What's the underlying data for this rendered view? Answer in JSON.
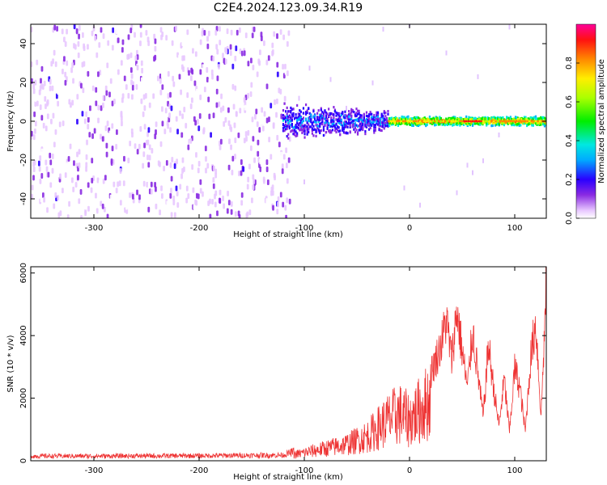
{
  "title": "C2E4.2024.123.09.34.R19",
  "chart_data": [
    {
      "type": "heatmap",
      "xlabel": "Height of straight line (km)",
      "ylabel": "Frequency (Hz)",
      "xlim": [
        -360,
        130
      ],
      "ylim": [
        -50,
        50
      ],
      "xticks": [
        -300,
        -200,
        -100,
        0,
        100
      ],
      "yticks": [
        -40,
        -20,
        0,
        20,
        40
      ],
      "colorbar": {
        "label": "Normalized spectral amplitude",
        "range": [
          0,
          1
        ],
        "ticks": [
          0.0,
          0.2,
          0.4,
          0.6,
          0.8
        ]
      },
      "regions": [
        {
          "x_range": [
            -360,
            -120
          ],
          "y_range": [
            -50,
            50
          ],
          "amplitude": "low (0.0-0.25), broadband noise"
        },
        {
          "x_range": [
            -120,
            -20
          ],
          "y_range": [
            -12,
            12
          ],
          "amplitude": "0.2-0.5, signal around 0 Hz"
        },
        {
          "x_range": [
            -20,
            130
          ],
          "y_range": [
            -3,
            3
          ],
          "amplitude": "0.6-1.0, narrow tone at 0 Hz"
        }
      ]
    },
    {
      "type": "line",
      "xlabel": "Height of straight line (km)",
      "ylabel": "SNR (10 * v/v)",
      "xlim": [
        -360,
        130
      ],
      "ylim": [
        0,
        6200
      ],
      "xticks": [
        -300,
        -200,
        -100,
        0,
        100
      ],
      "yticks": [
        0,
        2000,
        4000,
        6000
      ],
      "series": [
        {
          "color": "#ee3333",
          "x": [
            -360,
            -300,
            -200,
            -120,
            -100,
            -80,
            -60,
            -40,
            -20,
            -10,
            0,
            10,
            20,
            30,
            35,
            40,
            45,
            50,
            55,
            60,
            65,
            70,
            75,
            80,
            85,
            90,
            95,
            100,
            105,
            110,
            115,
            120,
            125,
            130
          ],
          "y": [
            150,
            150,
            160,
            180,
            400,
            600,
            800,
            1200,
            2000,
            2300,
            2000,
            2500,
            3000,
            4000,
            4900,
            3500,
            5200,
            3800,
            2500,
            4500,
            3000,
            1500,
            4000,
            2500,
            1200,
            2800,
            1000,
            3200,
            2500,
            1000,
            3500,
            4800,
            1500,
            6000
          ]
        }
      ]
    }
  ]
}
